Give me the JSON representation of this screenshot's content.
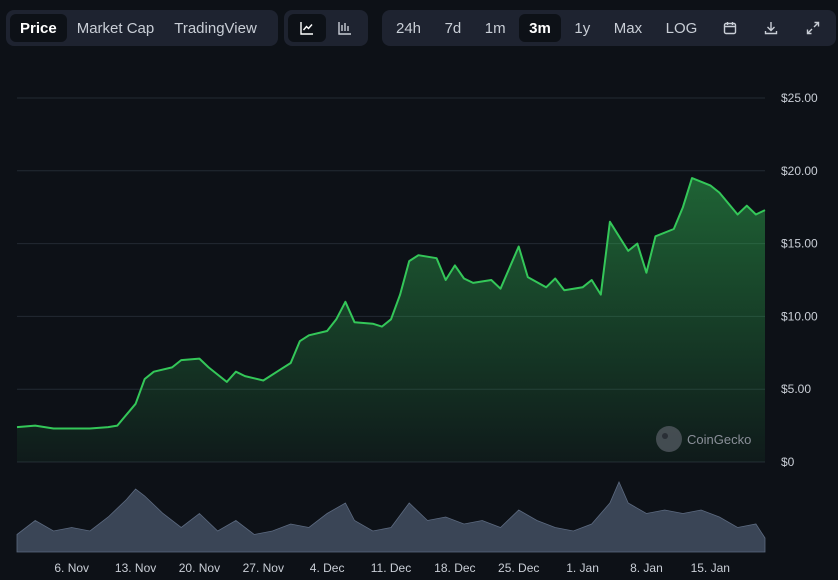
{
  "toolbar": {
    "type_tabs": [
      {
        "label": "Price",
        "active": true
      },
      {
        "label": "Market Cap",
        "active": false
      },
      {
        "label": "TradingView",
        "active": false
      }
    ],
    "chart_style_icons": [
      "line-chart-icon",
      "candlestick-chart-icon"
    ],
    "ranges": [
      {
        "label": "24h",
        "active": false
      },
      {
        "label": "7d",
        "active": false
      },
      {
        "label": "1m",
        "active": false
      },
      {
        "label": "3m",
        "active": true
      },
      {
        "label": "1y",
        "active": false
      },
      {
        "label": "Max",
        "active": false
      },
      {
        "label": "LOG",
        "active": false
      }
    ],
    "action_icons": [
      "calendar-icon",
      "download-icon",
      "fullscreen-icon"
    ]
  },
  "watermark": "CoinGecko",
  "colors": {
    "background": "#0d1117",
    "line": "#34c759",
    "grid": "#232a33",
    "volume": "#3a4556"
  },
  "chart_data": {
    "type": "area",
    "title": "",
    "xlabel": "",
    "ylabel": "",
    "ylim": [
      0,
      25
    ],
    "y_ticks": [
      "$25.00",
      "$20.00",
      "$15.00",
      "$10.00",
      "$5.00",
      "$0"
    ],
    "x_ticks": [
      "6. Nov",
      "13. Nov",
      "20. Nov",
      "27. Nov",
      "4. Dec",
      "11. Dec",
      "18. Dec",
      "25. Dec",
      "1. Jan",
      "8. Jan",
      "15. Jan"
    ],
    "grid": true,
    "price": {
      "x": [
        "2023-10-31",
        "2023-11-02",
        "2023-11-04",
        "2023-11-06",
        "2023-11-08",
        "2023-11-10",
        "2023-11-11",
        "2023-11-13",
        "2023-11-14",
        "2023-11-15",
        "2023-11-17",
        "2023-11-18",
        "2023-11-20",
        "2023-11-21",
        "2023-11-23",
        "2023-11-24",
        "2023-11-25",
        "2023-11-27",
        "2023-11-29",
        "2023-11-30",
        "2023-12-01",
        "2023-12-02",
        "2023-12-04",
        "2023-12-05",
        "2023-12-06",
        "2023-12-07",
        "2023-12-09",
        "2023-12-10",
        "2023-12-11",
        "2023-12-12",
        "2023-12-13",
        "2023-12-14",
        "2023-12-16",
        "2023-12-17",
        "2023-12-18",
        "2023-12-19",
        "2023-12-20",
        "2023-12-22",
        "2023-12-23",
        "2023-12-25",
        "2023-12-26",
        "2023-12-28",
        "2023-12-29",
        "2023-12-30",
        "2024-01-01",
        "2024-01-02",
        "2024-01-03",
        "2024-01-04",
        "2024-01-06",
        "2024-01-07",
        "2024-01-08",
        "2024-01-09",
        "2024-01-11",
        "2024-01-12",
        "2024-01-13",
        "2024-01-15",
        "2024-01-16",
        "2024-01-18",
        "2024-01-19",
        "2024-01-20",
        "2024-01-21"
      ],
      "y": [
        2.4,
        2.5,
        2.3,
        2.3,
        2.3,
        2.4,
        2.5,
        4.0,
        5.7,
        6.2,
        6.5,
        7.0,
        7.1,
        6.5,
        5.5,
        6.2,
        5.9,
        5.6,
        6.4,
        6.8,
        8.3,
        8.7,
        9.0,
        9.8,
        11.0,
        9.6,
        9.5,
        9.3,
        9.8,
        11.5,
        13.8,
        14.2,
        14.0,
        12.5,
        13.5,
        12.6,
        12.3,
        12.5,
        11.9,
        14.8,
        12.7,
        12.0,
        12.6,
        11.8,
        12.0,
        12.5,
        11.5,
        16.5,
        14.5,
        15.0,
        13.0,
        15.5,
        16.0,
        17.5,
        19.5,
        19.0,
        18.5,
        17.0,
        17.6,
        17.0,
        17.3
      ]
    },
    "volume": {
      "x": [
        "2023-10-31",
        "2023-11-02",
        "2023-11-04",
        "2023-11-06",
        "2023-11-08",
        "2023-11-10",
        "2023-11-12",
        "2023-11-13",
        "2023-11-14",
        "2023-11-16",
        "2023-11-18",
        "2023-11-20",
        "2023-11-22",
        "2023-11-24",
        "2023-11-26",
        "2023-11-28",
        "2023-11-30",
        "2023-12-02",
        "2023-12-04",
        "2023-12-06",
        "2023-12-07",
        "2023-12-09",
        "2023-12-11",
        "2023-12-13",
        "2023-12-15",
        "2023-12-17",
        "2023-12-19",
        "2023-12-21",
        "2023-12-23",
        "2023-12-25",
        "2023-12-27",
        "2023-12-29",
        "2023-12-31",
        "2024-01-02",
        "2024-01-04",
        "2024-01-05",
        "2024-01-06",
        "2024-01-08",
        "2024-01-10",
        "2024-01-12",
        "2024-01-14",
        "2024-01-16",
        "2024-01-18",
        "2024-01-20",
        "2024-01-21"
      ],
      "v": [
        0.25,
        0.45,
        0.3,
        0.35,
        0.3,
        0.5,
        0.75,
        0.9,
        0.8,
        0.55,
        0.35,
        0.55,
        0.3,
        0.45,
        0.25,
        0.3,
        0.4,
        0.35,
        0.55,
        0.7,
        0.45,
        0.3,
        0.35,
        0.7,
        0.45,
        0.5,
        0.4,
        0.45,
        0.35,
        0.6,
        0.45,
        0.35,
        0.3,
        0.4,
        0.7,
        1.0,
        0.7,
        0.55,
        0.6,
        0.55,
        0.6,
        0.5,
        0.35,
        0.4,
        0.2
      ]
    }
  }
}
